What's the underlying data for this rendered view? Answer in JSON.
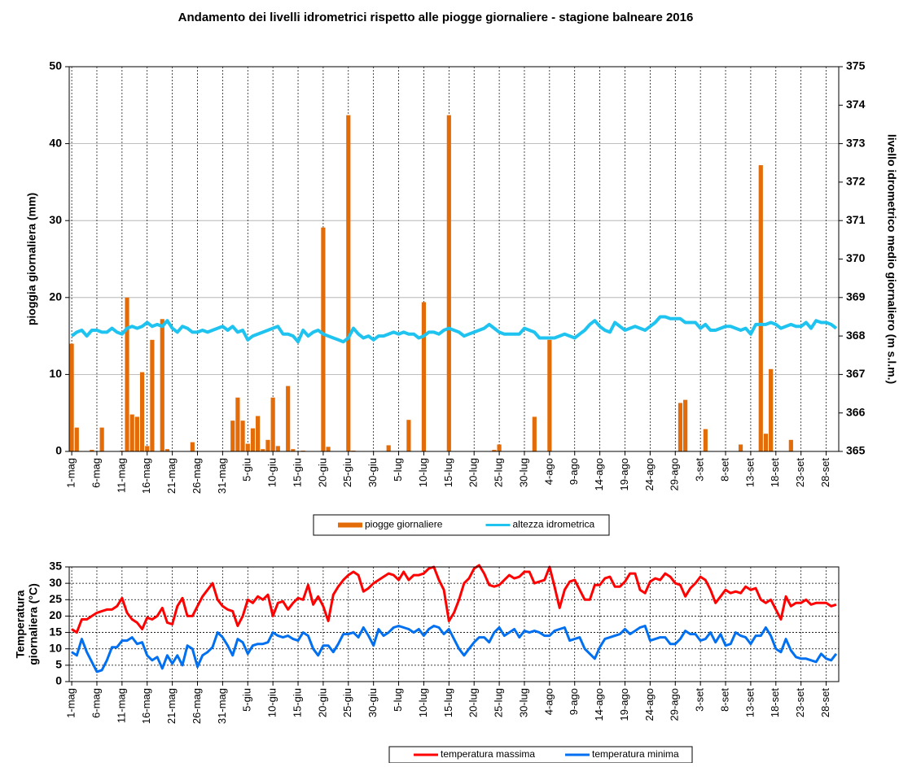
{
  "chart_data": [
    {
      "type": "combo",
      "title": "Andamento  dei livelli idrometrici rispetto alle piogge giornaliere - stagione balneare 2016",
      "y_label": "pioggia giornaliera (mm)",
      "y2_label": "livello idrometrico medio giornaliero (m s.l.m.)",
      "categories": [
        "1-mag",
        null,
        null,
        null,
        null,
        "6-mag",
        null,
        null,
        null,
        null,
        "11-mag",
        null,
        null,
        null,
        null,
        "16-mag",
        null,
        null,
        null,
        null,
        "21-mag",
        null,
        null,
        null,
        null,
        "26-mag",
        null,
        null,
        null,
        null,
        "31-mag",
        null,
        null,
        null,
        null,
        "5-giu",
        null,
        null,
        null,
        null,
        "10-giu",
        null,
        null,
        null,
        null,
        "15-giu",
        null,
        null,
        null,
        null,
        "20-giu",
        null,
        null,
        null,
        null,
        "25-giu",
        null,
        null,
        null,
        null,
        "30-giu",
        null,
        null,
        null,
        null,
        "5-lug",
        null,
        null,
        null,
        null,
        "10-lug",
        null,
        null,
        null,
        null,
        "15-lug",
        null,
        null,
        null,
        null,
        "20-lug",
        null,
        null,
        null,
        null,
        "25-lug",
        null,
        null,
        null,
        null,
        "30-lug",
        null,
        null,
        null,
        null,
        "4-ago",
        null,
        null,
        null,
        null,
        "9-ago",
        null,
        null,
        null,
        null,
        "14-ago",
        null,
        null,
        null,
        null,
        "19-ago",
        null,
        null,
        null,
        null,
        "24-ago",
        null,
        null,
        null,
        null,
        "29-ago",
        null,
        null,
        null,
        null,
        "3-set",
        null,
        null,
        null,
        null,
        "8-set",
        null,
        null,
        null,
        null,
        "13-set",
        null,
        null,
        null,
        null,
        "18-set",
        null,
        null,
        null,
        null,
        "23-set",
        null,
        null,
        null,
        null,
        "28-set",
        null,
        null
      ],
      "series": [
        {
          "name": "piogge giornaliere",
          "type": "bar",
          "color": "#e36c09",
          "values": [
            14,
            3.1,
            0,
            0,
            0.2,
            0,
            3.1,
            0,
            0,
            0,
            0.1,
            20,
            4.8,
            4.5,
            10.3,
            0.7,
            14.5,
            0,
            17.2,
            0.3,
            0,
            0,
            0,
            0,
            1.2,
            0,
            0,
            0,
            0,
            0,
            0,
            0,
            4,
            7,
            4,
            1,
            3,
            4.6,
            0.3,
            1.5,
            7,
            0.7,
            0,
            8.5,
            0.3,
            0,
            0.1,
            0,
            0,
            0,
            29.1,
            0.6,
            0,
            0,
            0,
            43.7,
            0.1,
            0,
            0,
            0,
            0,
            0,
            0,
            0.8,
            0,
            0,
            0,
            4.1,
            0,
            0,
            19.4,
            0,
            0,
            0,
            0,
            43.7,
            0,
            0,
            0,
            0,
            0,
            0,
            0,
            0,
            0.2,
            0.9,
            0,
            0,
            0,
            0,
            0,
            0,
            4.5,
            0,
            0,
            14.5,
            0,
            0,
            0,
            0,
            0,
            0,
            0,
            0,
            0,
            0,
            0,
            0,
            0,
            0,
            0,
            0,
            0,
            0,
            0,
            0,
            0,
            0,
            0,
            0,
            0,
            6.3,
            6.7,
            0,
            0,
            0,
            2.9,
            0,
            0,
            0,
            0,
            0,
            0,
            0.9,
            0,
            0,
            0,
            37.2,
            2.3,
            10.7,
            0,
            0,
            0,
            1.5,
            0,
            0,
            0,
            0,
            0,
            0,
            0,
            0,
            0
          ]
        },
        {
          "name": "altezza idrometrica",
          "type": "line",
          "axis": "y2",
          "color": "#1fc3f0",
          "values": [
            368.0,
            368.1,
            368.15,
            368.0,
            368.15,
            368.15,
            368.1,
            368.1,
            368.2,
            368.1,
            368.05,
            368.2,
            368.25,
            368.2,
            368.25,
            368.35,
            368.25,
            368.3,
            368.25,
            368.4,
            368.2,
            368.1,
            368.25,
            368.2,
            368.1,
            368.1,
            368.15,
            368.1,
            368.15,
            368.2,
            368.25,
            368.15,
            368.25,
            368.1,
            368.15,
            367.9,
            368.0,
            368.05,
            368.1,
            368.15,
            368.2,
            368.25,
            368.05,
            368.05,
            368.0,
            367.85,
            368.15,
            368.0,
            368.1,
            368.15,
            368.05,
            368.0,
            367.95,
            367.9,
            367.85,
            367.95,
            368.2,
            368.05,
            367.95,
            368.0,
            367.9,
            368.0,
            368.0,
            368.05,
            368.1,
            368.05,
            368.1,
            368.05,
            368.05,
            367.95,
            368.0,
            368.1,
            368.1,
            368.05,
            368.15,
            368.2,
            368.15,
            368.1,
            368.0,
            368.05,
            368.1,
            368.15,
            368.2,
            368.3,
            368.2,
            368.1,
            368.05,
            368.05,
            368.05,
            368.05,
            368.2,
            368.15,
            368.1,
            367.95,
            367.95,
            367.95,
            367.95,
            368.0,
            368.05,
            368.0,
            367.95,
            368.05,
            368.15,
            368.3,
            368.4,
            368.25,
            368.15,
            368.1,
            368.35,
            368.25,
            368.15,
            368.2,
            368.25,
            368.2,
            368.15,
            368.25,
            368.35,
            368.5,
            368.5,
            368.45,
            368.45,
            368.45,
            368.35,
            368.35,
            368.35,
            368.2,
            368.3,
            368.15,
            368.15,
            368.2,
            368.25,
            368.25,
            368.2,
            368.15,
            368.2,
            368.05,
            368.3,
            368.3,
            368.3,
            368.35,
            368.3,
            368.2,
            368.25,
            368.3,
            368.25,
            368.25,
            368.35,
            368.2,
            368.4,
            368.35,
            368.35,
            368.3,
            368.2
          ]
        }
      ],
      "ylim": [
        0,
        50
      ],
      "yticks": [
        0,
        10,
        20,
        30,
        40,
        50
      ],
      "y2lim": [
        365,
        375
      ],
      "y2ticks": [
        365,
        366,
        367,
        368,
        369,
        370,
        371,
        372,
        373,
        374,
        375
      ],
      "grid": true
    },
    {
      "type": "line",
      "y_label": [
        "Temperatura",
        "giornaliera (°C)"
      ],
      "categories": [
        "1-mag",
        null,
        null,
        null,
        null,
        "6-mag",
        null,
        null,
        null,
        null,
        "11-mag",
        null,
        null,
        null,
        null,
        "16-mag",
        null,
        null,
        null,
        null,
        "21-mag",
        null,
        null,
        null,
        null,
        "26-mag",
        null,
        null,
        null,
        null,
        "31-mag",
        null,
        null,
        null,
        null,
        "5-giu",
        null,
        null,
        null,
        null,
        "10-giu",
        null,
        null,
        null,
        null,
        "15-giu",
        null,
        null,
        null,
        null,
        "20-giu",
        null,
        null,
        null,
        null,
        "25-giu",
        null,
        null,
        null,
        null,
        "30-giu",
        null,
        null,
        null,
        null,
        "5-lug",
        null,
        null,
        null,
        null,
        "10-lug",
        null,
        null,
        null,
        null,
        "15-lug",
        null,
        null,
        null,
        null,
        "20-lug",
        null,
        null,
        null,
        null,
        "25-lug",
        null,
        null,
        null,
        null,
        "30-lug",
        null,
        null,
        null,
        null,
        "4-ago",
        null,
        null,
        null,
        null,
        "9-ago",
        null,
        null,
        null,
        null,
        "14-ago",
        null,
        null,
        null,
        null,
        "19-ago",
        null,
        null,
        null,
        null,
        "24-ago",
        null,
        null,
        null,
        null,
        "29-ago",
        null,
        null,
        null,
        null,
        "3-set",
        null,
        null,
        null,
        null,
        "8-set",
        null,
        null,
        null,
        null,
        "13-set",
        null,
        null,
        null,
        null,
        "18-set",
        null,
        null,
        null,
        null,
        "23-set",
        null,
        null,
        null,
        null,
        "28-set",
        null,
        null
      ],
      "series": [
        {
          "name": "temperatura massima",
          "color": "#ff0000",
          "values": [
            16,
            15,
            19,
            19,
            20,
            21,
            21.5,
            22,
            22,
            23,
            25.5,
            21,
            19,
            18,
            16,
            19.5,
            19,
            20,
            22.5,
            18,
            17.5,
            23,
            25.5,
            20,
            20,
            23,
            26,
            28,
            30,
            25,
            23,
            22,
            21.5,
            17,
            20,
            25,
            24,
            26,
            25,
            26.5,
            20,
            24,
            24.5,
            22,
            24,
            25.5,
            25,
            29.5,
            23.5,
            26,
            23,
            18.5,
            26.5,
            29,
            31,
            32.5,
            33.5,
            32.5,
            27.5,
            28.5,
            30,
            31,
            32,
            33,
            32.5,
            31,
            33.5,
            31,
            32.5,
            32.5,
            33,
            34.5,
            35,
            31,
            28,
            18.5,
            21,
            25,
            30,
            31.5,
            34.5,
            35.5,
            33,
            29.5,
            29,
            29.5,
            31,
            32.5,
            31.5,
            32,
            33.5,
            33.5,
            30,
            30.5,
            31,
            35,
            29,
            22.5,
            28,
            30.5,
            31,
            28,
            25,
            25,
            29.5,
            29.5,
            31.5,
            32,
            29,
            29,
            30.5,
            33,
            33,
            28,
            27,
            30.5,
            31.5,
            31,
            33,
            32,
            30,
            29.5,
            26,
            28.5,
            30,
            32,
            31,
            28,
            24,
            26,
            28,
            27,
            27.5,
            27,
            29,
            28,
            28.5,
            25,
            24,
            25,
            22,
            19,
            26,
            23,
            24,
            24,
            25,
            23.5,
            24,
            24,
            24,
            23,
            23.5
          ]
        },
        {
          "name": "temperatura minima",
          "color": "#0070f0",
          "values": [
            9,
            8,
            13,
            9,
            6,
            3,
            3.5,
            6.5,
            10.5,
            10.5,
            12.5,
            12.5,
            13.5,
            11.5,
            12,
            8,
            6.5,
            7.5,
            4,
            8,
            5.5,
            8,
            5,
            11,
            10,
            4.5,
            8,
            9,
            10.5,
            15,
            13.5,
            11,
            8,
            13,
            12,
            8.5,
            11,
            11.5,
            11.5,
            12,
            15,
            14,
            13.5,
            14,
            13,
            12.5,
            15,
            14,
            10,
            8,
            11,
            11,
            9,
            11.5,
            14.5,
            14.5,
            15,
            13.5,
            16.5,
            14,
            11,
            16,
            14,
            15,
            16.5,
            17,
            16.5,
            16,
            15,
            16,
            14,
            16,
            17,
            16.5,
            14.5,
            16,
            13,
            10,
            8,
            10,
            12,
            13.5,
            13.5,
            12,
            15,
            16.5,
            14,
            15,
            16,
            13.5,
            15.5,
            15,
            15.5,
            15,
            14,
            14,
            15.5,
            16,
            16.5,
            12.5,
            13,
            13.5,
            10,
            8.5,
            7,
            10.5,
            13,
            13.5,
            14,
            14.5,
            16,
            14.5,
            15.5,
            16.5,
            17,
            12.5,
            13,
            13.5,
            13.5,
            11.5,
            11.5,
            13,
            15.5,
            14.5,
            14.5,
            12.5,
            13,
            15,
            12,
            14.5,
            11,
            11.5,
            15,
            14,
            13.5,
            11.5,
            14,
            14,
            16.5,
            14,
            10,
            9,
            13,
            9.5,
            7.5,
            7,
            7,
            6.5,
            6,
            8.5,
            7,
            6.5,
            8.5
          ]
        }
      ],
      "ylim": [
        0,
        35
      ],
      "yticks": [
        0,
        5,
        10,
        15,
        20,
        25,
        30,
        35
      ],
      "grid": true
    }
  ]
}
